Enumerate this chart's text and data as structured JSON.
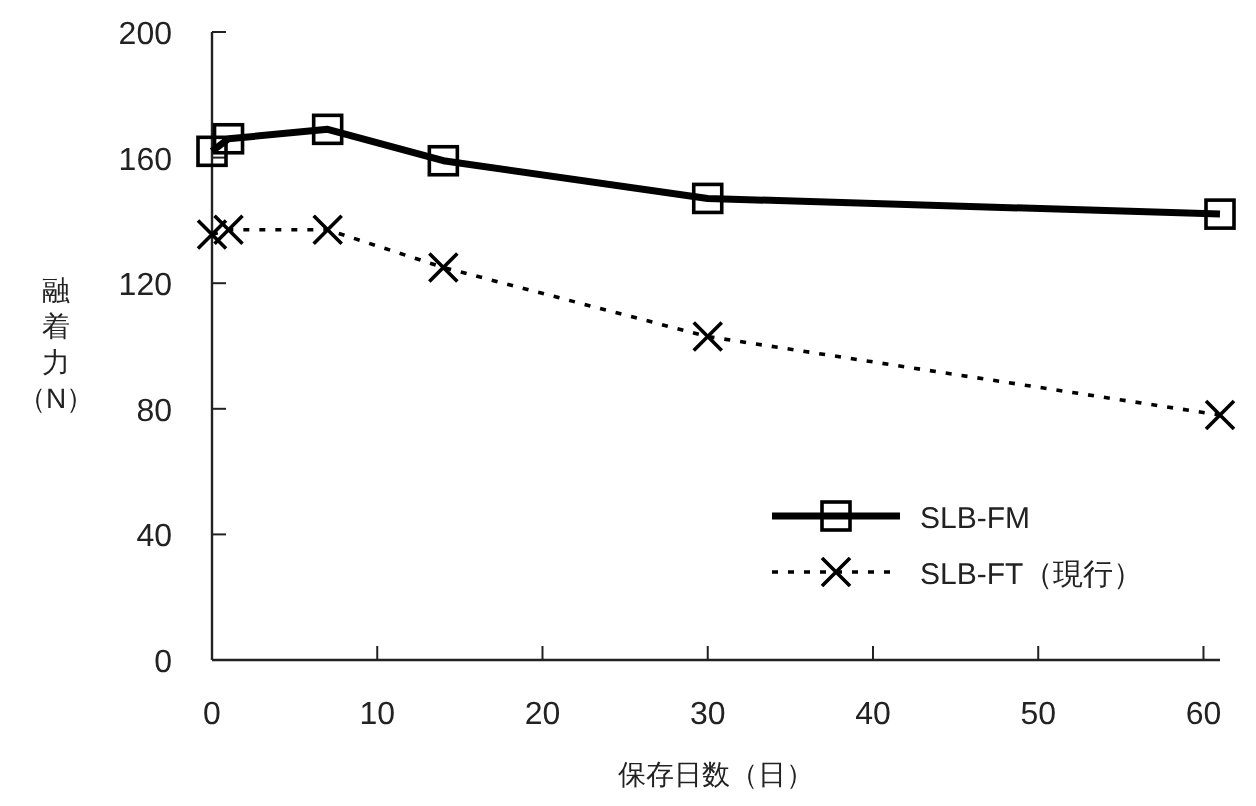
{
  "chart_data": {
    "type": "line",
    "xlabel": "保存日数（日）",
    "ylabel": "融着力（N）",
    "x": [
      0,
      1,
      7,
      14,
      30,
      61
    ],
    "xlim": [
      0,
      61
    ],
    "xticks": [
      0,
      10,
      20,
      30,
      40,
      50,
      60
    ],
    "ylim": [
      0,
      200
    ],
    "yticks": [
      0,
      40,
      80,
      120,
      160,
      200
    ],
    "grid": false,
    "legend": "bottom right",
    "series": [
      {
        "name": "SLB-FM",
        "color": "#000000",
        "marker": "square",
        "line_style": "solid",
        "values": [
          162,
          166,
          169,
          159,
          147,
          142
        ]
      },
      {
        "name": "SLB-FT（現行）",
        "color": "#000000",
        "marker": "cross",
        "line_style": "dotted",
        "values": [
          135.5,
          137,
          137,
          125,
          103,
          78
        ]
      }
    ]
  }
}
